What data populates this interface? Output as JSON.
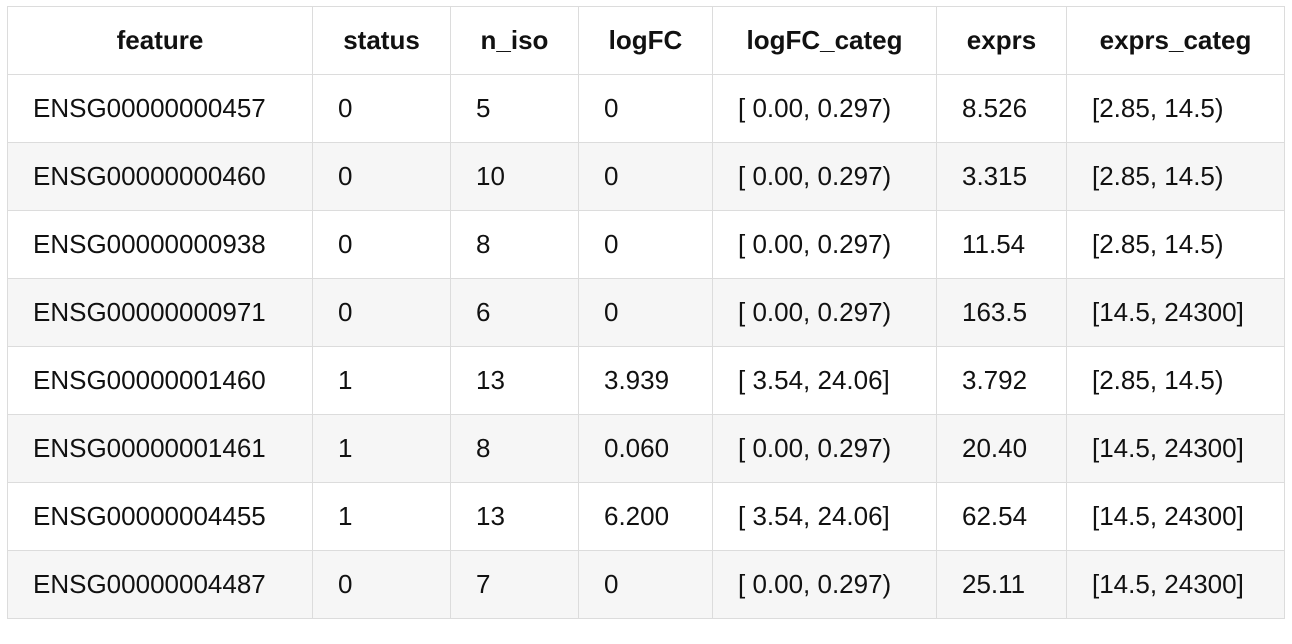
{
  "table": {
    "columns": [
      "feature",
      "status",
      "n_iso",
      "logFC",
      "logFC_categ",
      "exprs",
      "exprs_categ"
    ],
    "rows": [
      [
        "ENSG00000000457",
        "0",
        "5",
        "0",
        "[ 0.00, 0.297)",
        "8.526",
        "[2.85, 14.5)"
      ],
      [
        "ENSG00000000460",
        "0",
        "10",
        "0",
        "[ 0.00, 0.297)",
        "3.315",
        "[2.85, 14.5)"
      ],
      [
        "ENSG00000000938",
        "0",
        "8",
        "0",
        "[ 0.00, 0.297)",
        "11.54",
        "[2.85, 14.5)"
      ],
      [
        "ENSG00000000971",
        "0",
        "6",
        "0",
        "[ 0.00, 0.297)",
        "163.5",
        "[14.5, 24300]"
      ],
      [
        "ENSG00000001460",
        "1",
        "13",
        "3.939",
        "[ 3.54, 24.06]",
        "3.792",
        "[2.85, 14.5)"
      ],
      [
        "ENSG00000001461",
        "1",
        "8",
        "0.060",
        "[ 0.00, 0.297)",
        "20.40",
        "[14.5, 24300]"
      ],
      [
        "ENSG00000004455",
        "1",
        "13",
        "6.200",
        "[ 3.54, 24.06]",
        "62.54",
        "[14.5, 24300]"
      ],
      [
        "ENSG00000004487",
        "0",
        "7",
        "0",
        "[ 0.00, 0.297)",
        "25.11",
        "[14.5, 24300]"
      ]
    ]
  }
}
